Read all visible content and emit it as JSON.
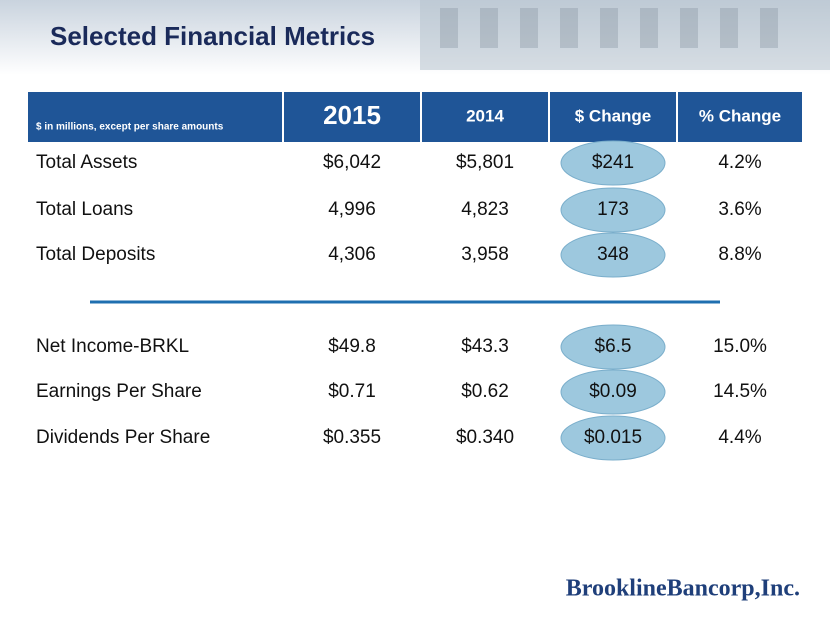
{
  "header": {
    "title": "Selected Financial Metrics"
  },
  "table": {
    "columns": [
      "$ in millions, except per share amounts",
      "2015",
      "2014",
      "$ Change",
      "% Change"
    ],
    "rows": [
      [
        "Total Assets",
        "$6,042",
        "$5,801",
        "$241",
        "4.2%"
      ],
      [
        "Total Loans",
        "4,996",
        "4,823",
        "173",
        "3.6%"
      ],
      [
        "Total Deposits",
        "4,306",
        "3,958",
        "348",
        "8.8%"
      ],
      [
        "Net Income-BRKL",
        "$49.8",
        "$43.3",
        "$6.5",
        "15.0%"
      ],
      [
        "Earnings Per Share",
        "$0.71",
        "$0.62",
        "$0.09",
        "14.5%"
      ],
      [
        "Dividends Per Share",
        "$0.355",
        "$0.340",
        "$0.015",
        "4.4%"
      ]
    ]
  },
  "footer": {
    "logo": "BrooklineBancorp,Inc."
  }
}
